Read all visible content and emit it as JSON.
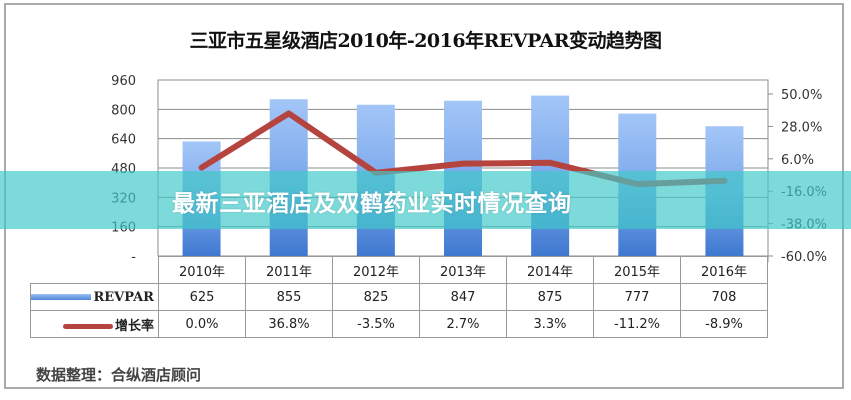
{
  "title": "三亚市五星级酒店2010年-2016年REVPAR变动趋势图",
  "banner": "最新三亚酒店及双鹤药业实时情况查询",
  "source": "数据整理：合纵酒店顾问",
  "left_axis": {
    "ticks": [
      "960",
      "800",
      "640",
      "480",
      "320",
      "160",
      "-"
    ]
  },
  "right_axis": {
    "ticks": [
      "50.0%",
      "28.0%",
      "6.0%",
      "-16.0%",
      "-38.0%",
      "-60.0%"
    ]
  },
  "table": {
    "years": [
      "2010年",
      "2011年",
      "2012年",
      "2013年",
      "2014年",
      "2015年",
      "2016年"
    ],
    "revpar_label": "REVPAR",
    "growth_label": "增长率",
    "revpar": [
      "625",
      "855",
      "825",
      "847",
      "875",
      "777",
      "708"
    ],
    "growth": [
      "0.0%",
      "36.8%",
      "-3.5%",
      "2.7%",
      "3.3%",
      "-11.2%",
      "-8.9%"
    ]
  },
  "colors": {
    "bar_top": "#9cc1f5",
    "bar_bottom": "#3f78d0",
    "line": "#b5443f",
    "banner": "#40c8c8"
  },
  "chart_data": {
    "type": "bar",
    "title": "三亚市五星级酒店2010年-2016年REVPAR变动趋势图",
    "categories": [
      "2010年",
      "2011年",
      "2012年",
      "2013年",
      "2014年",
      "2015年",
      "2016年"
    ],
    "series": [
      {
        "name": "REVPAR",
        "type": "bar",
        "axis": "left",
        "values": [
          625,
          855,
          825,
          847,
          875,
          777,
          708
        ]
      },
      {
        "name": "增长率",
        "type": "line",
        "axis": "right",
        "values": [
          0.0,
          36.8,
          -3.5,
          2.7,
          3.3,
          -11.2,
          -8.9
        ],
        "unit": "%"
      }
    ],
    "xlabel": "",
    "ylabel": "",
    "ylim": [
      0,
      960
    ],
    "y2lim": [
      -60,
      50
    ],
    "yticks": [
      0,
      160,
      320,
      480,
      640,
      800,
      960
    ],
    "y2ticks": [
      -60,
      -38,
      -16,
      6,
      28,
      50
    ],
    "grid": true,
    "legend_position": "data-table",
    "annotation": "数据整理：合纵酒店顾问"
  }
}
